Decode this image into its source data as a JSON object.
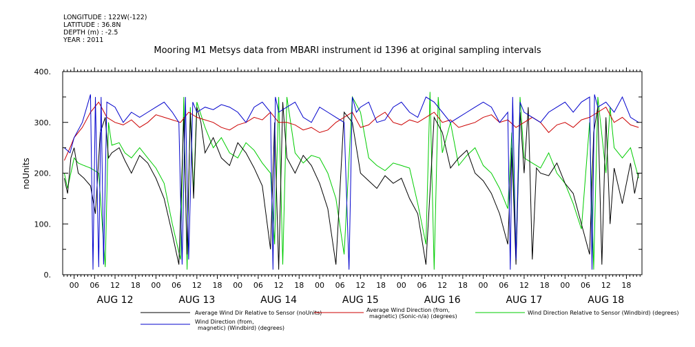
{
  "meta": {
    "longitude": "LONGITUDE : 122W(-122)",
    "latitude": "LATITUDE : 36.8N",
    "depth": "DEPTH (m) : -2.5",
    "year": "YEAR : 2011"
  },
  "chart_data": {
    "type": "line",
    "title": "Mooring M1 Metsys data from MBARI instrument id 1396 at original sampling intervals",
    "ylabel": "noUnits",
    "xlabel": "",
    "ylim": [
      0,
      400
    ],
    "yticks": [
      0,
      100,
      200,
      300,
      400
    ],
    "ytick_labels": [
      "0.",
      "100.",
      "200.",
      "300.",
      "400."
    ],
    "xlim": [
      -0.14,
      6.94
    ],
    "xtick_hours": [
      "00",
      "06",
      "12",
      "18",
      "00",
      "06",
      "12",
      "18",
      "00",
      "06",
      "12",
      "18",
      "00",
      "06",
      "12",
      "18",
      "00",
      "06",
      "12",
      "18",
      "00",
      "06",
      "12",
      "18",
      "00",
      "06",
      "12",
      "18"
    ],
    "day_labels": [
      "AUG 12",
      "AUG 13",
      "AUG 14",
      "AUG 15",
      "AUG 16",
      "AUG 17",
      "AUG 18"
    ],
    "grid": false,
    "series": [
      {
        "name": "Average Wind Dir Relative to Sensor (noUnits)",
        "color": "#000000",
        "x": [
          -0.12,
          -0.08,
          -0.04,
          0.0,
          0.05,
          0.12,
          0.2,
          0.26,
          0.32,
          0.38,
          0.42,
          0.46,
          0.55,
          0.62,
          0.7,
          0.8,
          0.9,
          1.0,
          1.1,
          1.2,
          1.28,
          1.34,
          1.38,
          1.42,
          1.46,
          1.5,
          1.55,
          1.6,
          1.7,
          1.8,
          1.9,
          2.0,
          2.1,
          2.2,
          2.3,
          2.4,
          2.45,
          2.5,
          2.55,
          2.6,
          2.7,
          2.8,
          2.9,
          3.0,
          3.1,
          3.2,
          3.3,
          3.4,
          3.5,
          3.6,
          3.7,
          3.8,
          3.9,
          4.0,
          4.1,
          4.2,
          4.3,
          4.4,
          4.5,
          4.6,
          4.7,
          4.8,
          4.9,
          5.0,
          5.1,
          5.2,
          5.3,
          5.35,
          5.4,
          5.45,
          5.5,
          5.55,
          5.6,
          5.65,
          5.7,
          5.8,
          5.9,
          6.0,
          6.1,
          6.2,
          6.3,
          6.35,
          6.4,
          6.45,
          6.5,
          6.55,
          6.6,
          6.7,
          6.8,
          6.85,
          6.9
        ],
        "values": [
          190,
          160,
          230,
          250,
          200,
          190,
          175,
          120,
          280,
          310,
          230,
          240,
          250,
          225,
          200,
          235,
          220,
          190,
          150,
          80,
          20,
          310,
          40,
          320,
          150,
          330,
          300,
          240,
          270,
          230,
          215,
          260,
          240,
          210,
          175,
          50,
          300,
          10,
          340,
          230,
          200,
          235,
          215,
          180,
          130,
          20,
          320,
          300,
          200,
          185,
          170,
          195,
          180,
          190,
          150,
          120,
          20,
          310,
          280,
          210,
          230,
          245,
          200,
          185,
          160,
          120,
          60,
          250,
          20,
          320,
          200,
          330,
          30,
          210,
          200,
          195,
          220,
          180,
          160,
          100,
          40,
          280,
          330,
          20,
          310,
          100,
          210,
          140,
          220,
          160,
          200
        ]
      },
      {
        "name": "Average Wind Direction (from, magnetic) (Sonic-n/a) (degrees)",
        "color": "#cc0000",
        "x": [
          -0.12,
          -0.05,
          0.0,
          0.1,
          0.2,
          0.3,
          0.4,
          0.5,
          0.6,
          0.7,
          0.8,
          0.9,
          1.0,
          1.1,
          1.2,
          1.3,
          1.4,
          1.5,
          1.6,
          1.7,
          1.8,
          1.9,
          2.0,
          2.1,
          2.2,
          2.3,
          2.4,
          2.5,
          2.6,
          2.7,
          2.8,
          2.9,
          3.0,
          3.1,
          3.2,
          3.3,
          3.4,
          3.5,
          3.6,
          3.7,
          3.8,
          3.9,
          4.0,
          4.1,
          4.2,
          4.3,
          4.4,
          4.5,
          4.6,
          4.7,
          4.8,
          4.9,
          5.0,
          5.1,
          5.2,
          5.3,
          5.4,
          5.5,
          5.6,
          5.7,
          5.8,
          5.9,
          6.0,
          6.1,
          6.2,
          6.3,
          6.4,
          6.5,
          6.6,
          6.7,
          6.8,
          6.9
        ],
        "values": [
          225,
          250,
          270,
          290,
          320,
          340,
          310,
          300,
          295,
          305,
          290,
          300,
          315,
          310,
          305,
          300,
          320,
          310,
          305,
          300,
          290,
          285,
          295,
          300,
          310,
          305,
          320,
          300,
          300,
          295,
          285,
          290,
          280,
          285,
          300,
          310,
          320,
          290,
          295,
          310,
          320,
          300,
          295,
          305,
          300,
          310,
          320,
          300,
          305,
          290,
          295,
          300,
          310,
          315,
          300,
          305,
          290,
          300,
          310,
          300,
          280,
          295,
          300,
          290,
          305,
          310,
          320,
          330,
          300,
          310,
          295,
          290
        ]
      },
      {
        "name": "Wind Direction Relative to Sensor (Windbird) (degrees)",
        "color": "#00cc00",
        "x": [
          -0.12,
          -0.08,
          0.0,
          0.05,
          0.12,
          0.2,
          0.3,
          0.38,
          0.42,
          0.46,
          0.55,
          0.62,
          0.7,
          0.8,
          0.9,
          1.0,
          1.1,
          1.2,
          1.3,
          1.34,
          1.38,
          1.42,
          1.46,
          1.5,
          1.6,
          1.7,
          1.8,
          1.9,
          2.0,
          2.1,
          2.2,
          2.3,
          2.4,
          2.45,
          2.5,
          2.55,
          2.6,
          2.7,
          2.8,
          2.9,
          3.0,
          3.1,
          3.2,
          3.3,
          3.4,
          3.5,
          3.6,
          3.7,
          3.8,
          3.9,
          4.0,
          4.1,
          4.2,
          4.3,
          4.35,
          4.4,
          4.45,
          4.5,
          4.6,
          4.7,
          4.8,
          4.9,
          5.0,
          5.1,
          5.2,
          5.3,
          5.35,
          5.4,
          5.45,
          5.5,
          5.6,
          5.7,
          5.8,
          5.9,
          6.0,
          6.1,
          6.2,
          6.3,
          6.35,
          6.4,
          6.5,
          6.55,
          6.6,
          6.7,
          6.8,
          6.9
        ],
        "values": [
          200,
          170,
          230,
          220,
          215,
          210,
          200,
          15,
          300,
          255,
          260,
          240,
          230,
          250,
          230,
          210,
          180,
          100,
          30,
          350,
          10,
          330,
          160,
          340,
          290,
          250,
          270,
          240,
          230,
          260,
          245,
          220,
          200,
          60,
          350,
          20,
          350,
          240,
          220,
          235,
          230,
          200,
          150,
          40,
          350,
          320,
          230,
          215,
          205,
          220,
          215,
          210,
          140,
          60,
          360,
          10,
          350,
          240,
          300,
          215,
          235,
          250,
          215,
          200,
          170,
          130,
          280,
          40,
          350,
          230,
          220,
          210,
          240,
          200,
          180,
          140,
          90,
          300,
          10,
          350,
          200,
          330,
          250,
          230,
          250,
          190
        ]
      },
      {
        "name": "Wind Direction (from, magnetic) (Windbird) (degrees)",
        "color": "#0000cc",
        "x": [
          -0.12,
          -0.05,
          0.0,
          0.1,
          0.2,
          0.23,
          0.26,
          0.3,
          0.33,
          0.36,
          0.4,
          0.5,
          0.6,
          0.7,
          0.8,
          0.9,
          1.0,
          1.1,
          1.2,
          1.28,
          1.32,
          1.36,
          1.4,
          1.45,
          1.5,
          1.6,
          1.7,
          1.8,
          1.9,
          2.0,
          2.1,
          2.2,
          2.3,
          2.4,
          2.43,
          2.46,
          2.5,
          2.6,
          2.7,
          2.8,
          2.9,
          3.0,
          3.1,
          3.2,
          3.3,
          3.36,
          3.4,
          3.45,
          3.5,
          3.6,
          3.7,
          3.8,
          3.9,
          4.0,
          4.1,
          4.2,
          4.3,
          4.4,
          4.5,
          4.6,
          4.7,
          4.8,
          4.9,
          5.0,
          5.1,
          5.2,
          5.3,
          5.33,
          5.36,
          5.4,
          5.45,
          5.5,
          5.6,
          5.7,
          5.8,
          5.9,
          6.0,
          6.1,
          6.2,
          6.3,
          6.33,
          6.36,
          6.4,
          6.5,
          6.6,
          6.7,
          6.8,
          6.9
        ],
        "values": [
          250,
          240,
          270,
          300,
          355,
          10,
          350,
          15,
          350,
          20,
          340,
          330,
          300,
          320,
          310,
          320,
          330,
          340,
          320,
          300,
          20,
          350,
          30,
          340,
          320,
          330,
          325,
          335,
          330,
          320,
          300,
          330,
          340,
          320,
          10,
          350,
          320,
          330,
          340,
          310,
          300,
          330,
          320,
          310,
          300,
          10,
          350,
          320,
          330,
          340,
          300,
          305,
          330,
          340,
          320,
          310,
          350,
          340,
          320,
          300,
          310,
          320,
          330,
          340,
          330,
          300,
          320,
          10,
          350,
          30,
          340,
          320,
          310,
          300,
          320,
          330,
          340,
          320,
          340,
          350,
          10,
          355,
          330,
          340,
          320,
          350,
          310,
          300
        ]
      }
    ]
  },
  "legend": {
    "entries": [
      {
        "line1": "Average Wind Dir Relative to Sensor (noUnits)",
        "line2": ""
      },
      {
        "line1": "Average Wind Direction (from,",
        "line2": "magnetic) (Sonic-n/a) (degrees)"
      },
      {
        "line1": "Wind Direction Relative to Sensor (Windbird) (degrees)",
        "line2": ""
      },
      {
        "line1": "Wind Direction (from,",
        "line2": "magnetic) (Windbird) (degrees)"
      }
    ]
  }
}
